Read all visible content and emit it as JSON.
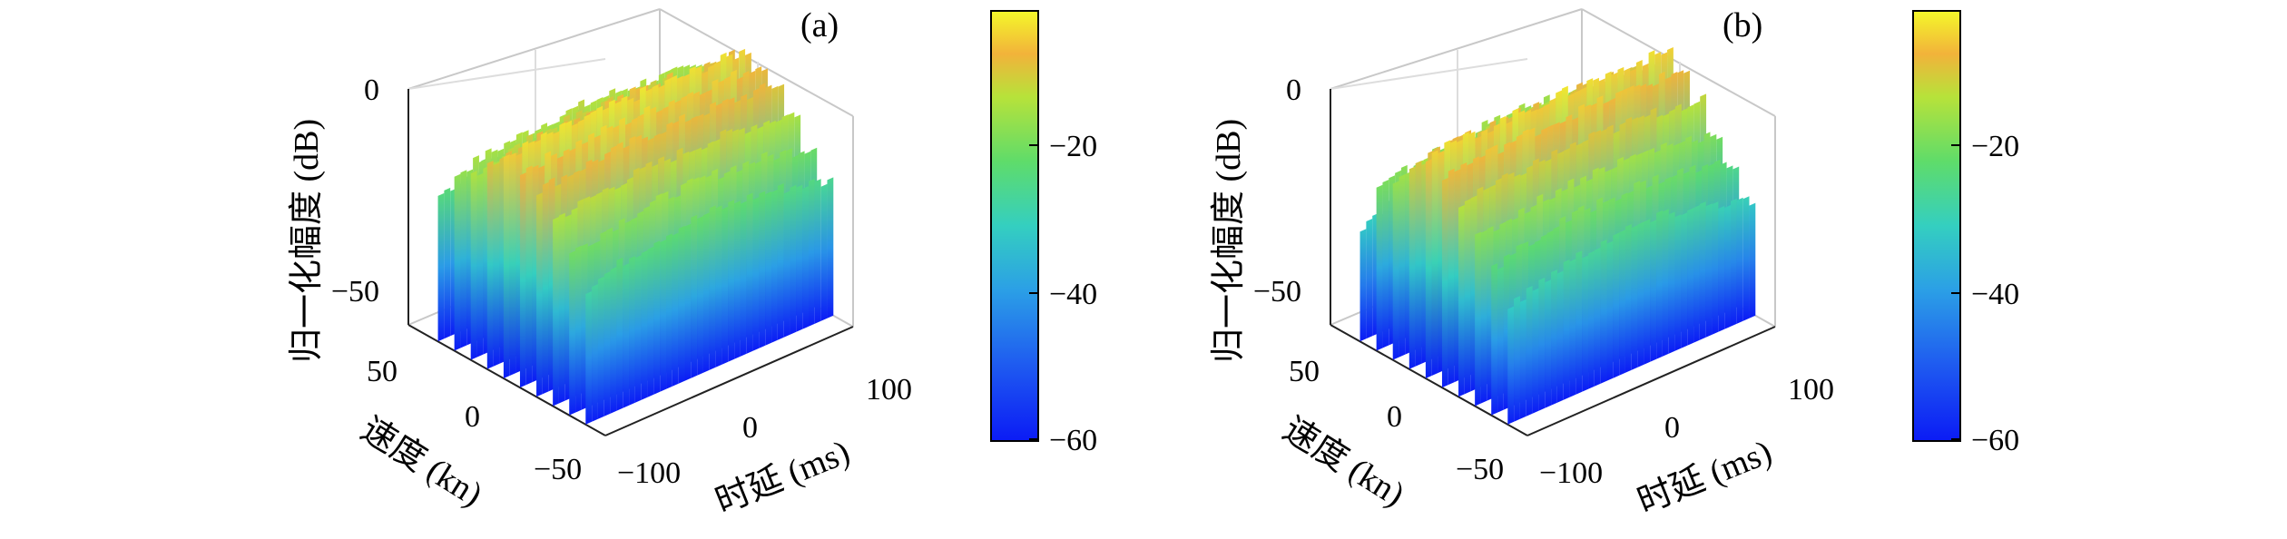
{
  "figure": {
    "panels": [
      {
        "label": "(a)"
      },
      {
        "label": "(b)"
      }
    ]
  },
  "chart_data": [
    {
      "type": "surface",
      "panel_label": "(a)",
      "zlabel": "归一化幅度 (dB)",
      "xlabel": "时延 (ms)",
      "ylabel": "速度 (kn)",
      "x_ticks": [
        -100,
        0,
        100
      ],
      "y_ticks": [
        50,
        0,
        -50
      ],
      "z_ticks": [
        -50,
        0
      ],
      "xlim": [
        -100,
        100
      ],
      "ylim": [
        -60,
        60
      ],
      "zlim": [
        -60,
        0
      ],
      "colorbar": {
        "ticks": [
          -20,
          -40,
          -60
        ],
        "range": [
          -60,
          0
        ],
        "colormap": "jet"
      },
      "ridges": [
        {
          "velocity": 42,
          "peak_db": -18
        },
        {
          "velocity": 32,
          "peak_db": -12
        },
        {
          "velocity": 22,
          "peak_db": -10
        },
        {
          "velocity": 12,
          "peak_db": -6
        },
        {
          "velocity": 2,
          "peak_db": -3
        },
        {
          "velocity": -8,
          "peak_db": -4
        },
        {
          "velocity": -18,
          "peak_db": -6
        },
        {
          "velocity": -28,
          "peak_db": -10
        },
        {
          "velocity": -38,
          "peak_db": -15
        },
        {
          "velocity": -48,
          "peak_db": -20
        }
      ],
      "noise_floor_db": -58
    },
    {
      "type": "surface",
      "panel_label": "(b)",
      "zlabel": "归一化幅度 (dB)",
      "xlabel": "时延 (ms)",
      "ylabel": "速度 (kn)",
      "x_ticks": [
        -100,
        0,
        100
      ],
      "y_ticks": [
        50,
        0,
        -50
      ],
      "z_ticks": [
        -50,
        0
      ],
      "xlim": [
        -100,
        100
      ],
      "ylim": [
        -60,
        60
      ],
      "zlim": [
        -60,
        0
      ],
      "colorbar": {
        "ticks": [
          -20,
          -40,
          -60
        ],
        "range": [
          -60,
          0
        ],
        "colormap": "jet"
      },
      "ridges": [
        {
          "velocity": 42,
          "peak_db": -24
        },
        {
          "velocity": 32,
          "peak_db": -15
        },
        {
          "velocity": 22,
          "peak_db": -12
        },
        {
          "velocity": 12,
          "peak_db": -7
        },
        {
          "velocity": 2,
          "peak_db": -3
        },
        {
          "velocity": -8,
          "peak_db": -5
        },
        {
          "velocity": -18,
          "peak_db": -9
        },
        {
          "velocity": -28,
          "peak_db": -14
        },
        {
          "velocity": -38,
          "peak_db": -18
        },
        {
          "velocity": -48,
          "peak_db": -24
        }
      ],
      "noise_floor_db": -58
    }
  ]
}
